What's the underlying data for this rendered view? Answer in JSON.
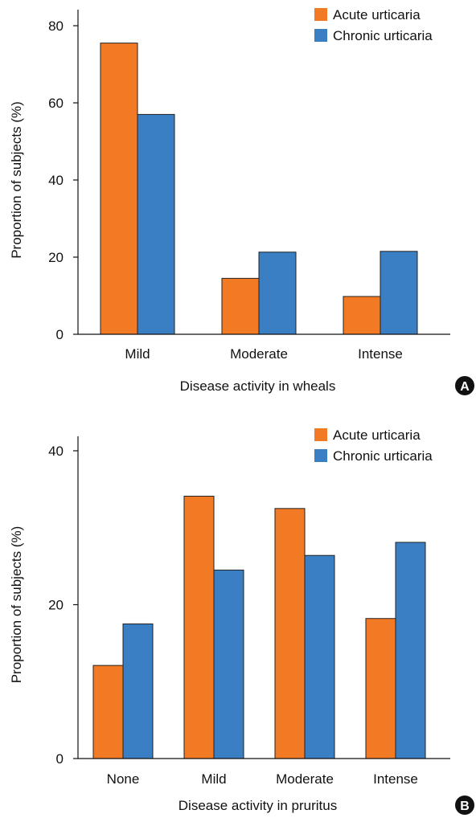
{
  "colors": {
    "acute": "#f37a24",
    "chronic": "#3a7fc4",
    "bar_edge": "#222222",
    "axis": "#111111",
    "panel_badge": "#111111"
  },
  "chart_data": [
    {
      "panel_label": "A",
      "type": "bar",
      "categories": [
        "Mild",
        "Moderate",
        "Intense"
      ],
      "series": [
        {
          "name": "Acute urticaria",
          "values": [
            75.5,
            14.5,
            9.8
          ]
        },
        {
          "name": "Chronic urticaria",
          "values": [
            57,
            21.3,
            21.5
          ]
        }
      ],
      "xlabel": "Disease activity in wheals",
      "ylabel": "Proportion of subjects (%)",
      "ylim": [
        0,
        80
      ],
      "yticks": [
        0,
        20,
        40,
        60,
        80
      ],
      "grid": false,
      "legend_position": "top-right"
    },
    {
      "panel_label": "B",
      "type": "bar",
      "categories": [
        "None",
        "Mild",
        "Moderate",
        "Intense"
      ],
      "series": [
        {
          "name": "Acute urticaria",
          "values": [
            12.1,
            34.1,
            32.5,
            18.2
          ]
        },
        {
          "name": "Chronic urticaria",
          "values": [
            17.5,
            24.5,
            26.4,
            28.1
          ]
        }
      ],
      "xlabel": "Disease activity in pruritus",
      "ylabel": "Proportion of subjects (%)",
      "ylim": [
        0,
        40
      ],
      "yticks": [
        0,
        20,
        40
      ],
      "grid": false,
      "legend_position": "top-right"
    }
  ]
}
